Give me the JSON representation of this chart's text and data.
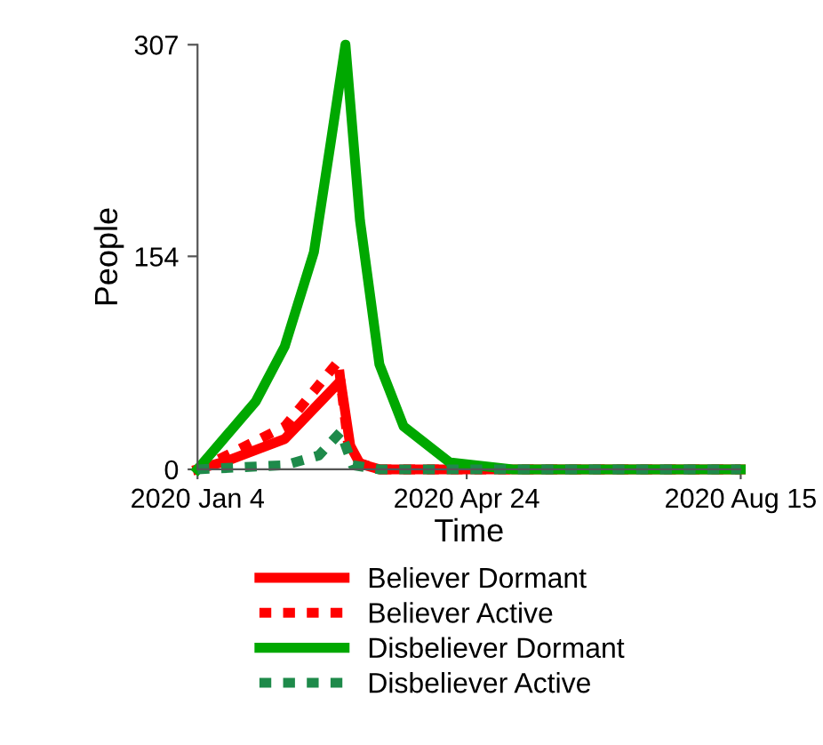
{
  "chart_data": {
    "type": "line",
    "xlabel": "Time",
    "ylabel": "People",
    "xlim": [
      "2020-01-04",
      "2020-08-15"
    ],
    "ylim": [
      0,
      307
    ],
    "xticks": [
      {
        "value": "2020-01-04",
        "label": "2020 Jan 4"
      },
      {
        "value": "2020-04-24",
        "label": "2020 Apr 24"
      },
      {
        "value": "2020-08-15",
        "label": "2020 Aug 15"
      }
    ],
    "yticks": [
      0,
      154,
      307
    ],
    "grid": false,
    "legend": "bottom",
    "marker": "none",
    "series": [
      {
        "name": "Believer Dormant",
        "color": "#ff0000",
        "line_style": "solid",
        "x": [
          "2020-01-04",
          "2020-01-16",
          "2020-02-09",
          "2020-03-03",
          "2020-03-07",
          "2020-03-11",
          "2020-03-19",
          "2020-04-17",
          "2020-08-15"
        ],
        "values": [
          0,
          6,
          22,
          64,
          17,
          4,
          0,
          0,
          0
        ]
      },
      {
        "name": "Believer Active",
        "color": "#ff0000",
        "line_style": "dotted",
        "x": [
          "2020-01-04",
          "2020-01-16",
          "2020-02-09",
          "2020-03-02",
          "2020-03-06",
          "2020-03-10",
          "2020-03-19",
          "2020-04-17",
          "2020-08-15"
        ],
        "values": [
          0,
          10,
          31,
          78,
          20,
          5,
          0,
          0,
          0
        ]
      },
      {
        "name": "Disbeliever Dormant",
        "color": "#00a800",
        "line_style": "solid",
        "x": [
          "2020-01-04",
          "2020-01-28",
          "2020-02-09",
          "2020-02-21",
          "2020-02-28",
          "2020-03-05",
          "2020-03-11",
          "2020-03-19",
          "2020-03-29",
          "2020-04-17",
          "2020-05-13",
          "2020-08-15"
        ],
        "values": [
          0,
          49,
          89,
          157,
          237,
          307,
          180,
          76,
          31,
          5,
          0,
          0
        ]
      },
      {
        "name": "Disbeliever Active",
        "color": "#1e8a4a",
        "line_style": "dotted",
        "x": [
          "2020-01-04",
          "2020-02-09",
          "2020-02-23",
          "2020-03-03",
          "2020-03-08",
          "2020-03-19",
          "2020-08-15"
        ],
        "values": [
          0,
          3,
          10,
          27,
          3,
          0,
          0
        ]
      }
    ]
  }
}
